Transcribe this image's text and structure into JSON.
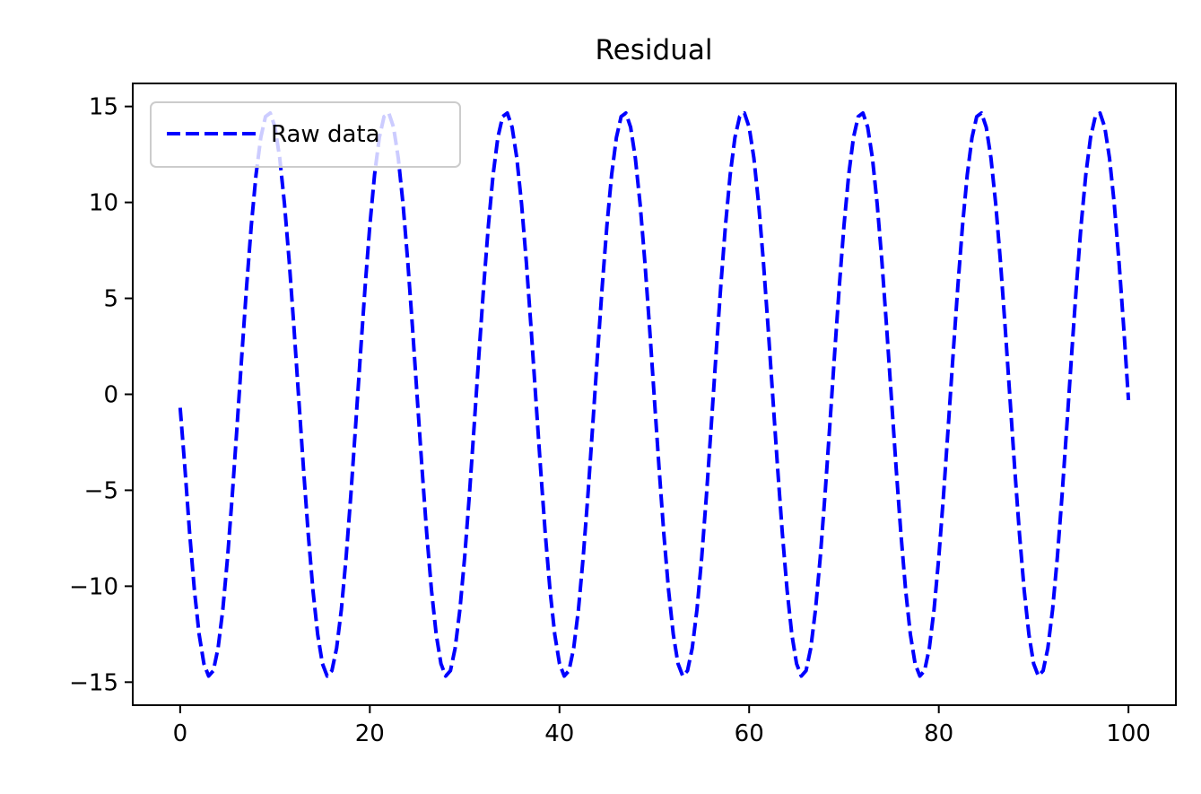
{
  "chart_data": {
    "type": "line",
    "title": "Residual",
    "xlabel": "",
    "ylabel": "",
    "xlim": [
      -5,
      105
    ],
    "ylim": [
      -16.2,
      16.2
    ],
    "x_ticks": [
      0,
      20,
      40,
      60,
      80,
      100
    ],
    "y_ticks": [
      15,
      10,
      5,
      0,
      -5,
      -10,
      -15
    ],
    "x_tick_labels": [
      "0",
      "20",
      "40",
      "60",
      "80",
      "100"
    ],
    "y_tick_labels": [
      "15",
      "10",
      "5",
      "0",
      "−5",
      "−10",
      "−15"
    ],
    "grid": false,
    "legend_position": "top-left",
    "series": [
      {
        "name": "Raw data",
        "color": "#0000ff",
        "line_style": "dashed",
        "amplitude": 14.7,
        "period": 12.5,
        "x_start": 0,
        "x_end": 100,
        "x_step": 0.5,
        "y_start": -0.7,
        "first_trough_x": 3.1,
        "first_peak_x": 9.35,
        "last_peak_x": 96.85,
        "y_end": -0.3
      }
    ]
  }
}
